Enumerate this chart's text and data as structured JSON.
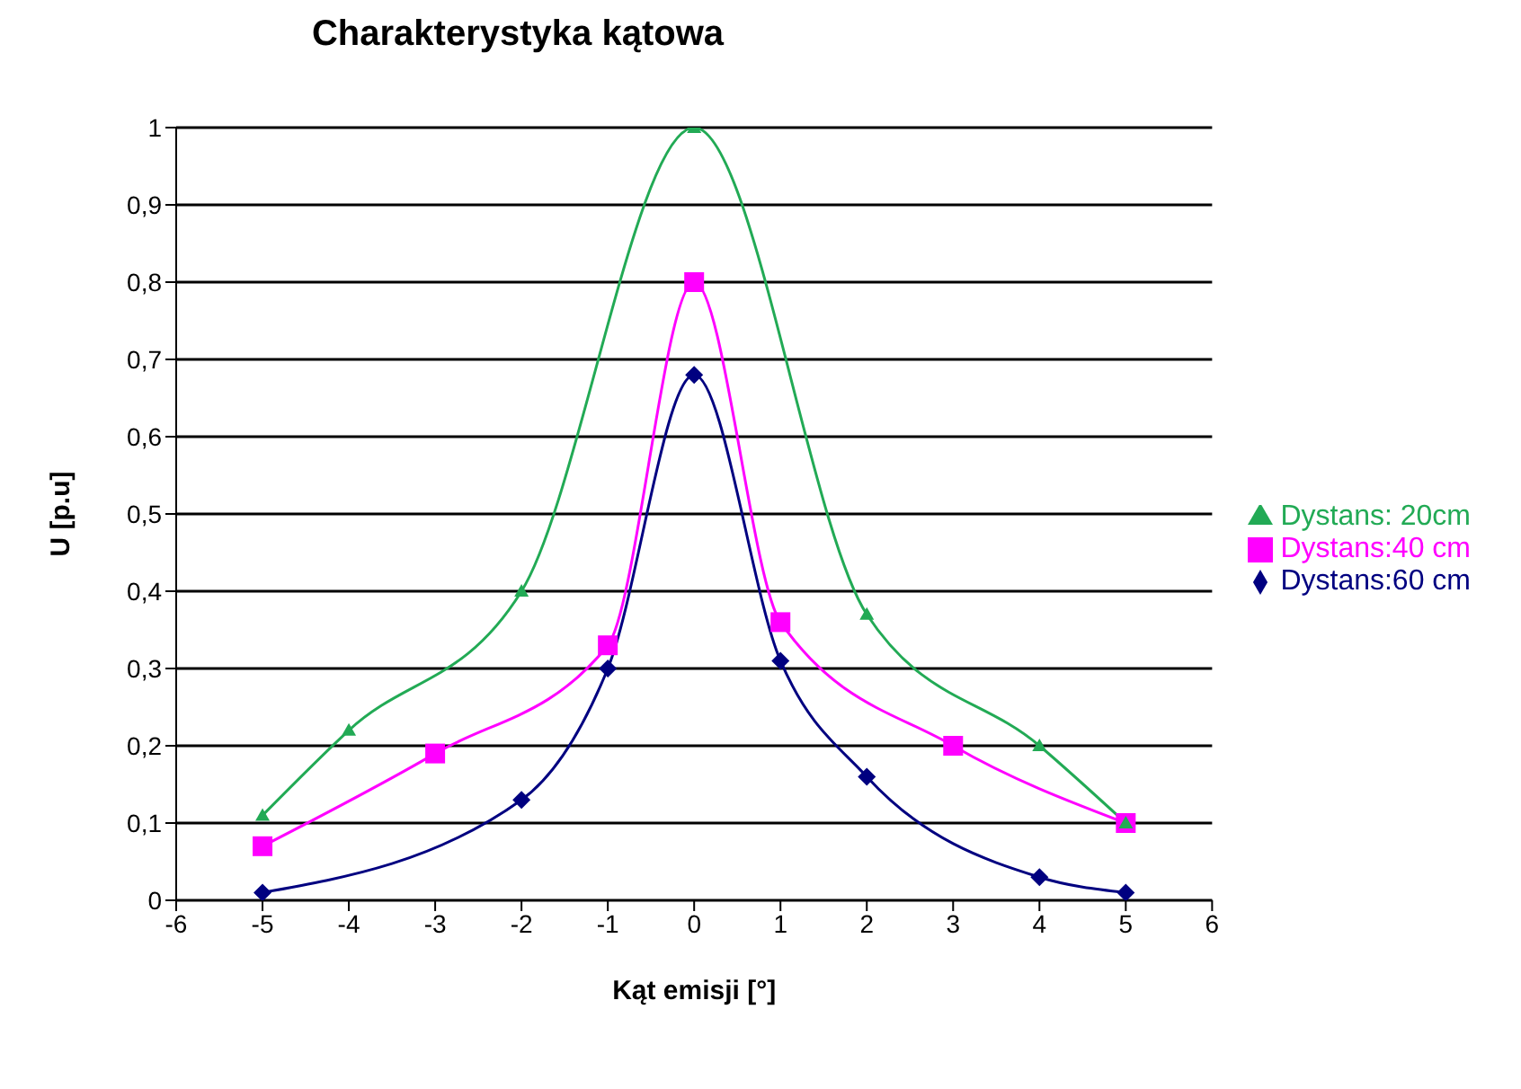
{
  "chart_data": {
    "type": "line",
    "title": "Charakterystyka  kątowa",
    "xlabel": "Kąt emisji [°]",
    "ylabel": "U [p.u]",
    "xlim": [
      -6,
      6
    ],
    "xticks": [
      -6,
      -5,
      -4,
      -3,
      -2,
      -1,
      0,
      1,
      2,
      3,
      4,
      5,
      6
    ],
    "ylim": [
      0,
      1
    ],
    "yticks": [
      {
        "value": 0,
        "label": "0"
      },
      {
        "value": 0.1,
        "label": "0,1"
      },
      {
        "value": 0.2,
        "label": "0,2"
      },
      {
        "value": 0.3,
        "label": "0,3"
      },
      {
        "value": 0.4,
        "label": "0,4"
      },
      {
        "value": 0.5,
        "label": "0,5"
      },
      {
        "value": 0.6,
        "label": "0,6"
      },
      {
        "value": 0.7,
        "label": "0,7"
      },
      {
        "value": 0.8,
        "label": "0,8"
      },
      {
        "value": 0.9,
        "label": "0,9"
      },
      {
        "value": 1,
        "label": "1"
      }
    ],
    "grid": "y",
    "legend": "right",
    "line_style": "solid",
    "series": [
      {
        "name": "Dystans:60 cm",
        "color": "#000080",
        "marker": "diamond",
        "x": [
          -5,
          -2,
          -1,
          0,
          1,
          2,
          4,
          5
        ],
        "values": [
          0.01,
          0.13,
          0.3,
          0.68,
          0.31,
          0.16,
          0.03,
          0.01
        ]
      },
      {
        "name": "Dystans:40 cm",
        "color": "#ff00ff",
        "marker": "square",
        "x": [
          -5,
          -3,
          -1,
          0,
          1,
          3,
          5
        ],
        "values": [
          0.07,
          0.19,
          0.33,
          0.8,
          0.36,
          0.2,
          0.1
        ]
      },
      {
        "name": "Dystans: 20cm",
        "color": "#22aa55",
        "marker": "triangle",
        "x": [
          -5,
          -4,
          -2,
          0,
          2,
          4,
          5
        ],
        "values": [
          0.11,
          0.22,
          0.4,
          1,
          0.37,
          0.2,
          0.1
        ]
      }
    ]
  }
}
